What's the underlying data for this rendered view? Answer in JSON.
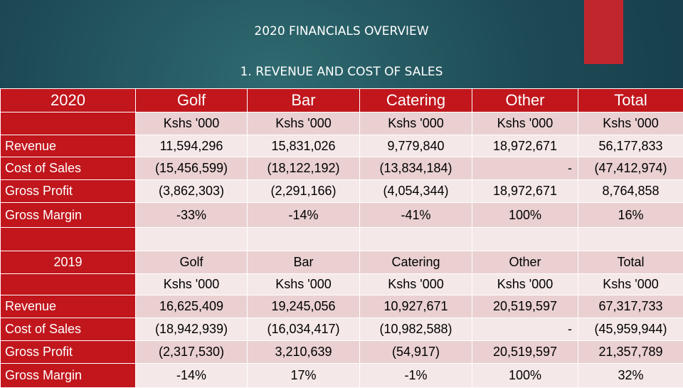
{
  "header": {
    "title": "2020 FINANCIALS OVERVIEW",
    "subtitle": "1. REVENUE AND COST OF SALES"
  },
  "colors": {
    "header_red": "#c0161c",
    "accent": "#c0272d",
    "row_dark": "#ead0d1",
    "row_light": "#f5e8e8"
  },
  "table": {
    "y2020": {
      "year": "2020",
      "columns": [
        "Golf",
        "Bar",
        "Catering",
        "Other",
        "Total"
      ],
      "units": [
        "Kshs '000",
        "Kshs '000",
        "Kshs '000",
        "Kshs '000",
        "Kshs '000"
      ],
      "rows": [
        {
          "label": "Revenue",
          "values": [
            "11,594,296",
            "15,831,026",
            "9,779,840",
            "18,972,671",
            "56,177,833"
          ]
        },
        {
          "label": "Cost of Sales",
          "values": [
            "(15,456,599)",
            "(18,122,192)",
            "(13,834,184)",
            "-",
            "(47,412,974)"
          ]
        },
        {
          "label": "Gross Profit",
          "values": [
            "(3,862,303)",
            "(2,291,166)",
            "(4,054,344)",
            "18,972,671",
            "8,764,858"
          ]
        },
        {
          "label": "Gross Margin",
          "values": [
            "-33%",
            "-14%",
            "-41%",
            "100%",
            "16%"
          ]
        }
      ]
    },
    "y2019": {
      "year": "2019",
      "columns": [
        "Golf",
        "Bar",
        "Catering",
        "Other",
        "Total"
      ],
      "units": [
        "Kshs '000",
        "Kshs '000",
        "Kshs '000",
        "Kshs '000",
        "Kshs '000"
      ],
      "rows": [
        {
          "label": "Revenue",
          "values": [
            "16,625,409",
            "19,245,056",
            "10,927,671",
            "20,519,597",
            "67,317,733"
          ]
        },
        {
          "label": "Cost of Sales",
          "values": [
            "(18,942,939)",
            "(16,034,417)",
            "(10,982,588)",
            "-",
            "(45,959,944)"
          ]
        },
        {
          "label": "Gross Profit",
          "values": [
            "(2,317,530)",
            "3,210,639",
            "(54,917)",
            "20,519,597",
            "21,357,789"
          ]
        },
        {
          "label": "Gross Margin",
          "values": [
            "-14%",
            "17%",
            "-1%",
            "100%",
            "32%"
          ]
        }
      ]
    }
  }
}
